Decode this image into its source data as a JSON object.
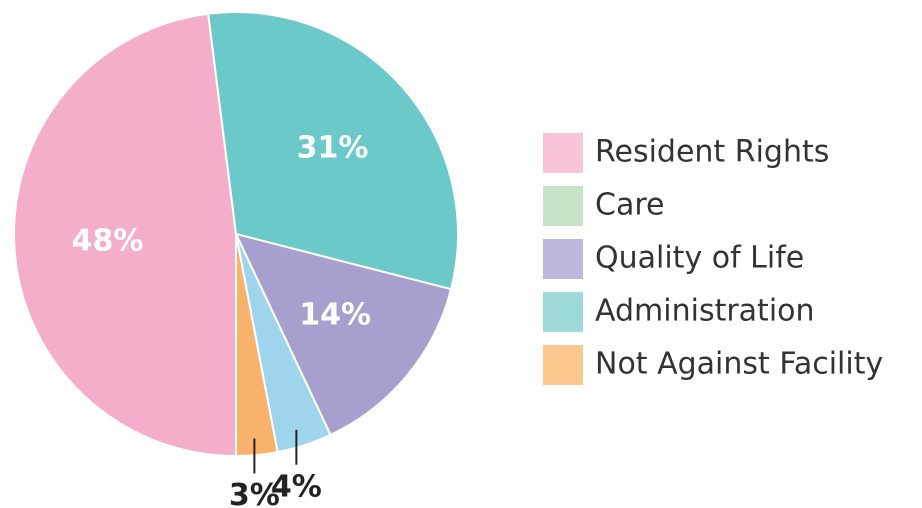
{
  "chart_data": {
    "type": "pie",
    "categories": [
      "Resident Rights",
      "Care",
      "Quality of Life",
      "Administration",
      "Not Against Facility"
    ],
    "values": [
      48,
      4,
      14,
      31,
      3
    ],
    "value_labels": [
      "48%",
      "4%",
      "14%",
      "31%",
      "3%"
    ],
    "colors": [
      "#f4aecb",
      "#9fd5ec",
      "#a79fce",
      "#6cc9c9",
      "#f9b26c"
    ],
    "legend_colors": [
      "#f9c3d9",
      "#c5e3c6",
      "#bdb7db",
      "#9dd9d9",
      "#fcc68f"
    ],
    "legend": "right"
  }
}
